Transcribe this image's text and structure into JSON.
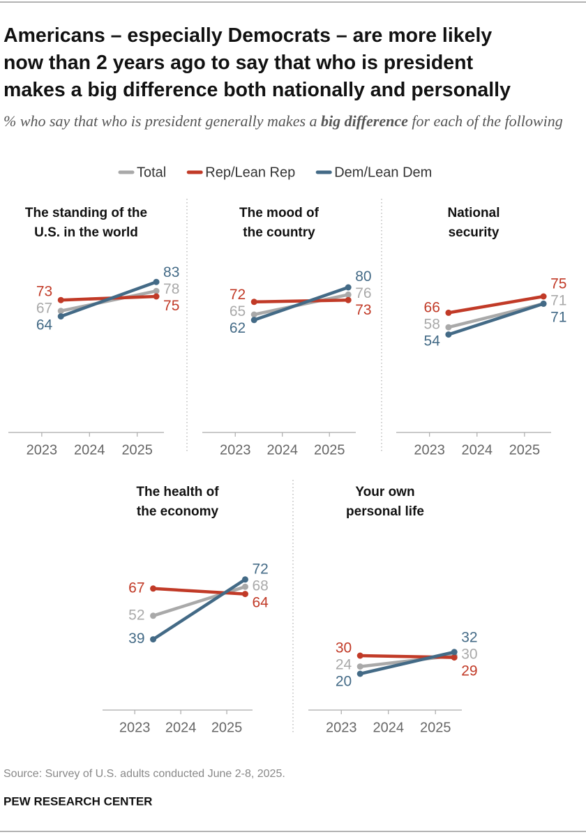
{
  "title_lines": [
    "Americans – especially Democrats – are more likely",
    "now than 2 years ago to say that who is president",
    "makes a big difference both nationally and personally"
  ],
  "subtitle": {
    "before": "% who say that who is president generally makes a ",
    "emphasis": "big difference",
    "after": " for each of the following"
  },
  "source": "Source: Survey of U.S. adults conducted June 2-8, 2025.",
  "footer": "PEW RESEARCH CENTER",
  "chart_data": [
    {
      "type": "line",
      "title_lines": [
        "The standing of the",
        "U.S. in the world"
      ],
      "x": [
        2023.4,
        2025.4
      ],
      "xlim": [
        2022.3,
        2025.56
      ],
      "xticks": [
        2023,
        2024,
        2025
      ],
      "ylim": [
        0,
        100
      ],
      "series": [
        {
          "name": "Total",
          "color": "#a9a9a9",
          "values": [
            67,
            78
          ]
        },
        {
          "name": "Rep/Lean Rep",
          "color": "#c13a27",
          "values": [
            73,
            75
          ]
        },
        {
          "name": "Dem/Lean Dem",
          "color": "#436a86",
          "values": [
            64,
            83
          ]
        }
      ]
    },
    {
      "type": "line",
      "title_lines": [
        "The mood of",
        "the country"
      ],
      "x": [
        2023.4,
        2025.4
      ],
      "xlim": [
        2022.3,
        2025.56
      ],
      "xticks": [
        2023,
        2024,
        2025
      ],
      "ylim": [
        0,
        100
      ],
      "series": [
        {
          "name": "Total",
          "color": "#a9a9a9",
          "values": [
            65,
            76
          ]
        },
        {
          "name": "Rep/Lean Rep",
          "color": "#c13a27",
          "values": [
            72,
            73
          ]
        },
        {
          "name": "Dem/Lean Dem",
          "color": "#436a86",
          "values": [
            62,
            80
          ]
        }
      ]
    },
    {
      "type": "line",
      "title_lines": [
        "National",
        "security"
      ],
      "x": [
        2023.4,
        2025.4
      ],
      "xlim": [
        2022.3,
        2025.56
      ],
      "xticks": [
        2023,
        2024,
        2025
      ],
      "ylim": [
        0,
        100
      ],
      "series": [
        {
          "name": "Total",
          "color": "#a9a9a9",
          "values": [
            58,
            71
          ]
        },
        {
          "name": "Rep/Lean Rep",
          "color": "#c13a27",
          "values": [
            66,
            75
          ]
        },
        {
          "name": "Dem/Lean Dem",
          "color": "#436a86",
          "values": [
            54,
            71
          ]
        }
      ]
    },
    {
      "type": "line",
      "title_lines": [
        "The health of",
        "the economy"
      ],
      "x": [
        2023.4,
        2025.4
      ],
      "xlim": [
        2022.3,
        2025.56
      ],
      "xticks": [
        2023,
        2024,
        2025
      ],
      "ylim": [
        0,
        100
      ],
      "series": [
        {
          "name": "Total",
          "color": "#a9a9a9",
          "values": [
            52,
            68
          ]
        },
        {
          "name": "Rep/Lean Rep",
          "color": "#c13a27",
          "values": [
            67,
            64
          ]
        },
        {
          "name": "Dem/Lean Dem",
          "color": "#436a86",
          "values": [
            39,
            72
          ]
        }
      ]
    },
    {
      "type": "line",
      "title_lines": [
        "Your own",
        "personal life"
      ],
      "x": [
        2023.4,
        2025.4
      ],
      "xlim": [
        2022.3,
        2025.56
      ],
      "xticks": [
        2023,
        2024,
        2025
      ],
      "ylim": [
        0,
        100
      ],
      "series": [
        {
          "name": "Total",
          "color": "#a9a9a9",
          "values": [
            24,
            30
          ]
        },
        {
          "name": "Rep/Lean Rep",
          "color": "#c13a27",
          "values": [
            30,
            29
          ]
        },
        {
          "name": "Dem/Lean Dem",
          "color": "#436a86",
          "values": [
            20,
            32
          ]
        }
      ]
    }
  ]
}
